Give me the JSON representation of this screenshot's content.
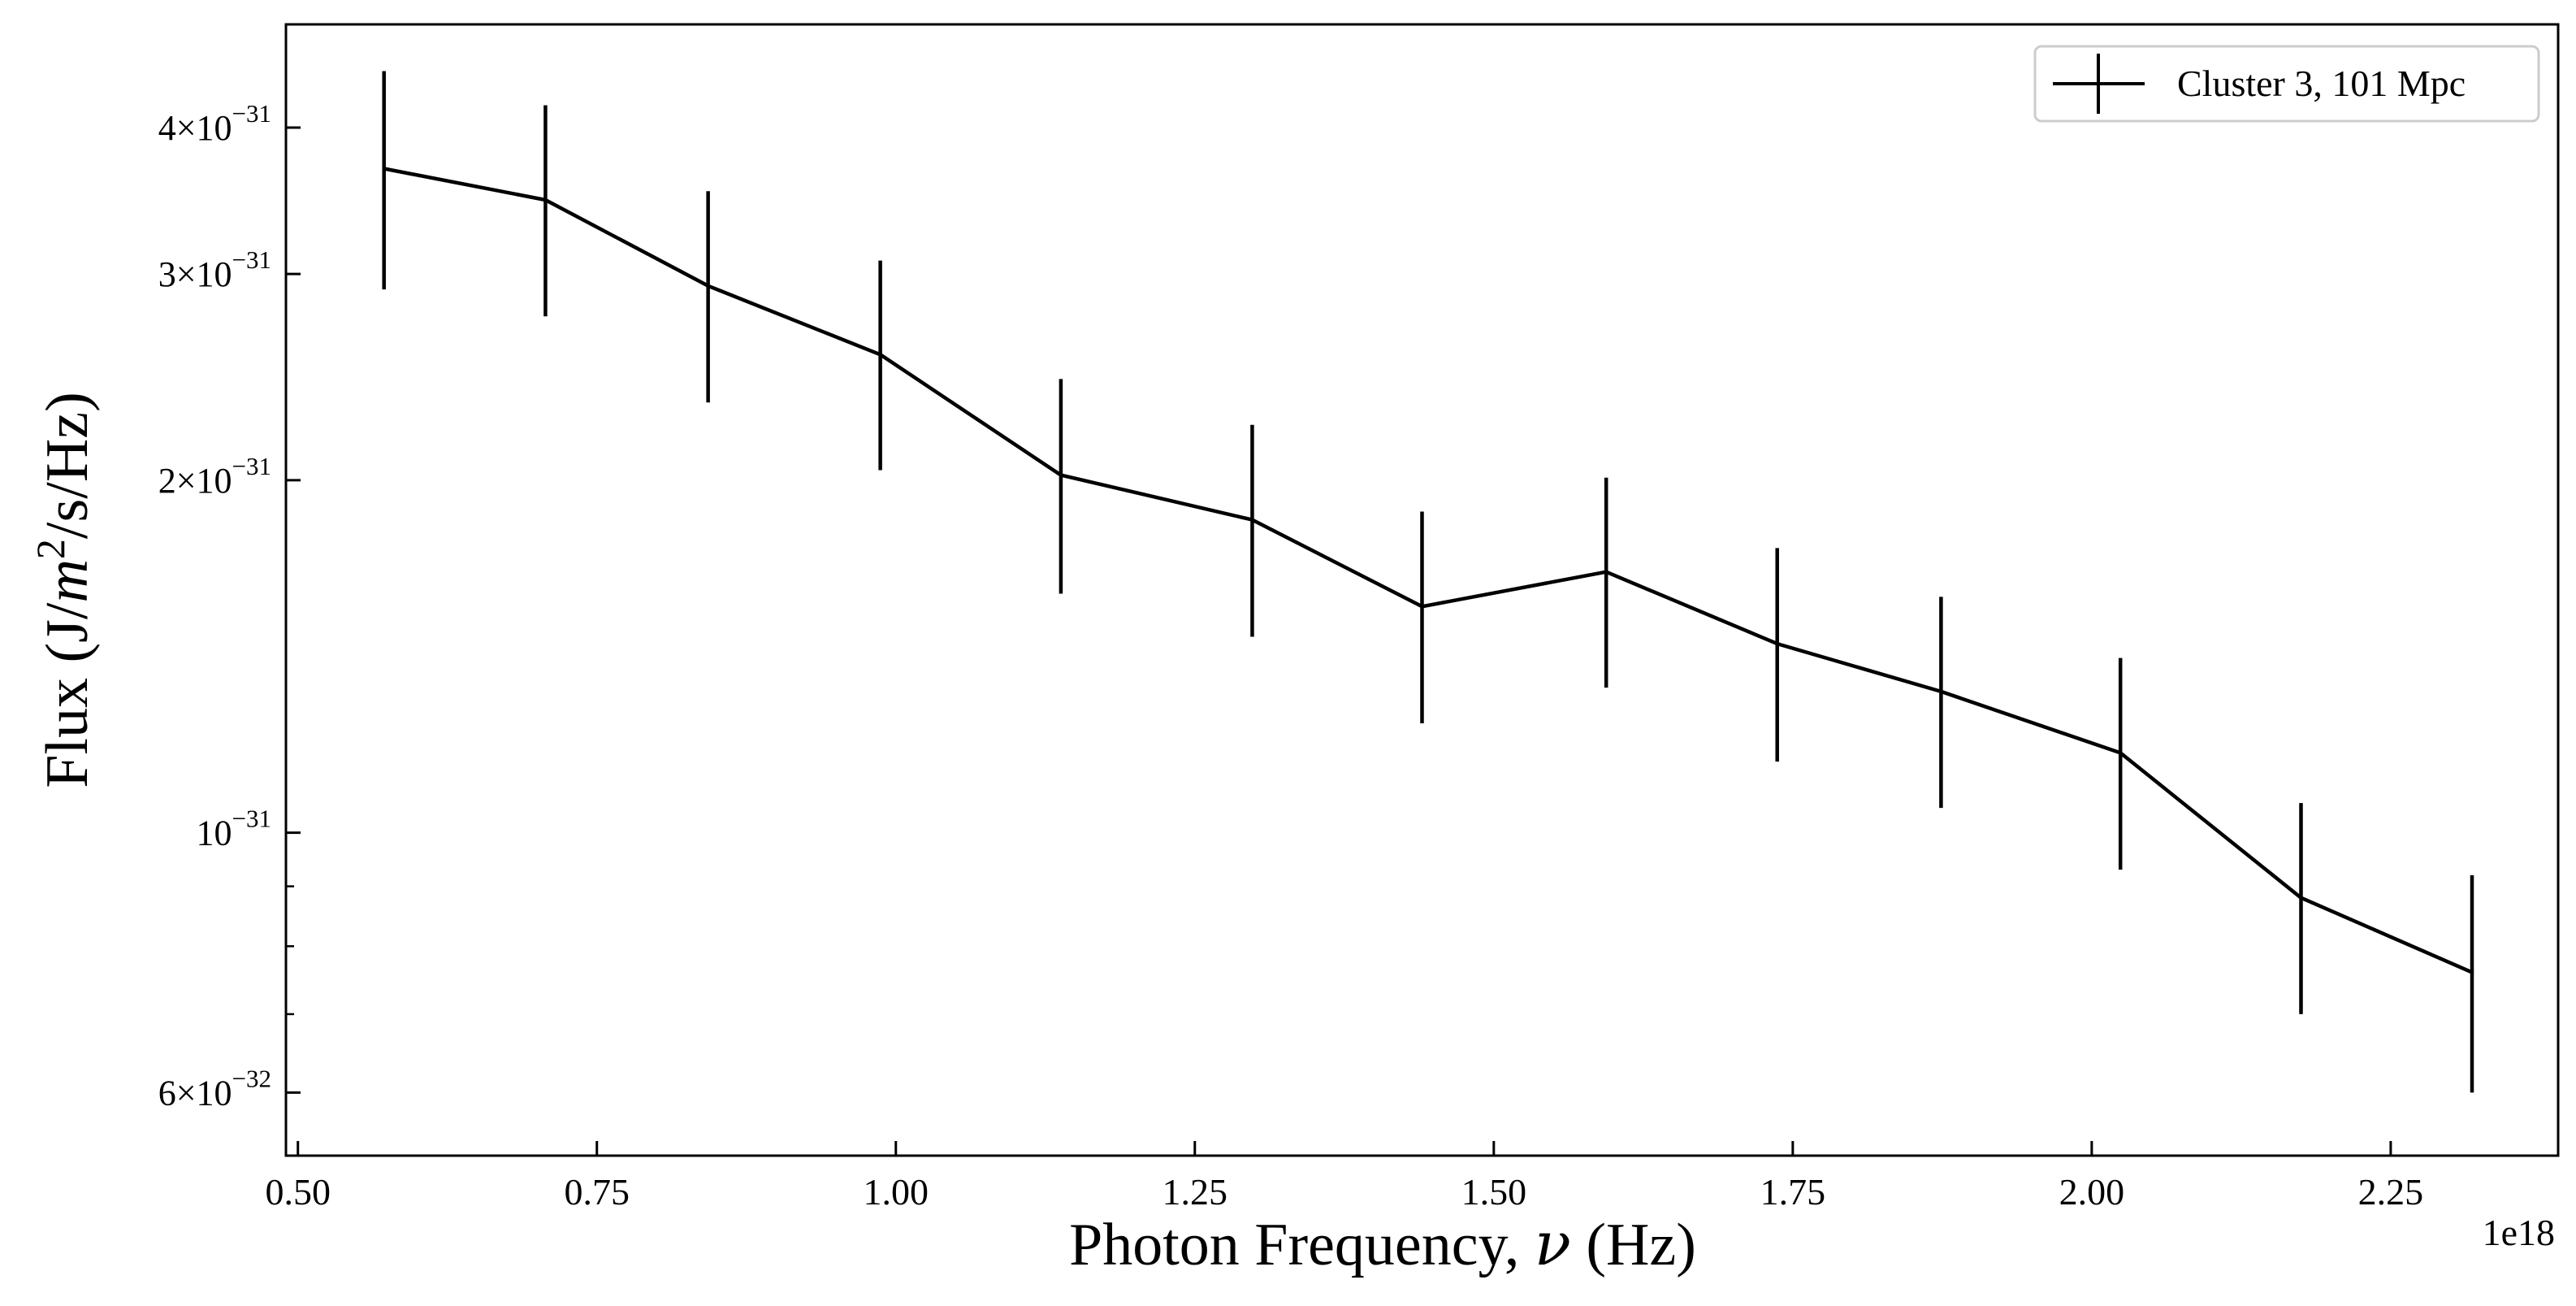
{
  "chart_data": {
    "type": "line",
    "xlabel_text": "Photon Frequency, ",
    "xlabel_symbol": "ν",
    "xlabel_unit": " (Hz)",
    "ylabel_prefix": "Flux (J/",
    "ylabel_sym": "m",
    "ylabel_exp": "2",
    "ylabel_suffix": "/s/Hz)",
    "x_offset_text": "1e18",
    "x_scale": "linear",
    "y_scale": "log",
    "xlim": [
      0.49,
      2.39
    ],
    "ylim": [
      5.3e-32,
      4.9e-31
    ],
    "x_ticks": [
      0.5,
      0.75,
      1.0,
      1.25,
      1.5,
      1.75,
      2.0,
      2.25
    ],
    "x_tick_labels": [
      "0.50",
      "0.75",
      "1.00",
      "1.25",
      "1.50",
      "1.75",
      "2.00",
      "2.25"
    ],
    "y_major_ticks": [
      {
        "value": 6e-32,
        "mantissa": "6",
        "exponent": "−32"
      },
      {
        "value": 1e-31,
        "mantissa": "",
        "exponent": "−31"
      },
      {
        "value": 2e-31,
        "mantissa": "2",
        "exponent": "−31"
      },
      {
        "value": 3e-31,
        "mantissa": "3",
        "exponent": "−31"
      },
      {
        "value": 4e-31,
        "mantissa": "4",
        "exponent": "−31"
      }
    ],
    "y_minor_ticks": [
      7e-32,
      8e-32,
      9e-32
    ],
    "grid": false,
    "legend_position": "top-right",
    "color": "#000000",
    "series": [
      {
        "name": "Cluster 3, 101 Mpc",
        "x": [
          0.572,
          0.707,
          0.843,
          0.987,
          1.138,
          1.298,
          1.44,
          1.594,
          1.737,
          1.874,
          2.024,
          2.175,
          2.318
        ],
        "y": [
          3.69e-31,
          3.47e-31,
          2.93e-31,
          2.56e-31,
          2.02e-31,
          1.85e-31,
          1.56e-31,
          1.67e-31,
          1.45e-31,
          1.32e-31,
          1.17e-31,
          8.8e-32,
          7.6e-32
        ],
        "y_err": [
          7.8e-32,
          7.1e-32,
          6e-32,
          5.2e-32,
          4.2e-32,
          3.8e-32,
          3.2e-32,
          3.4e-32,
          3e-32,
          2.7e-32,
          2.4e-32,
          1.8e-32,
          1.6e-32
        ]
      }
    ]
  }
}
